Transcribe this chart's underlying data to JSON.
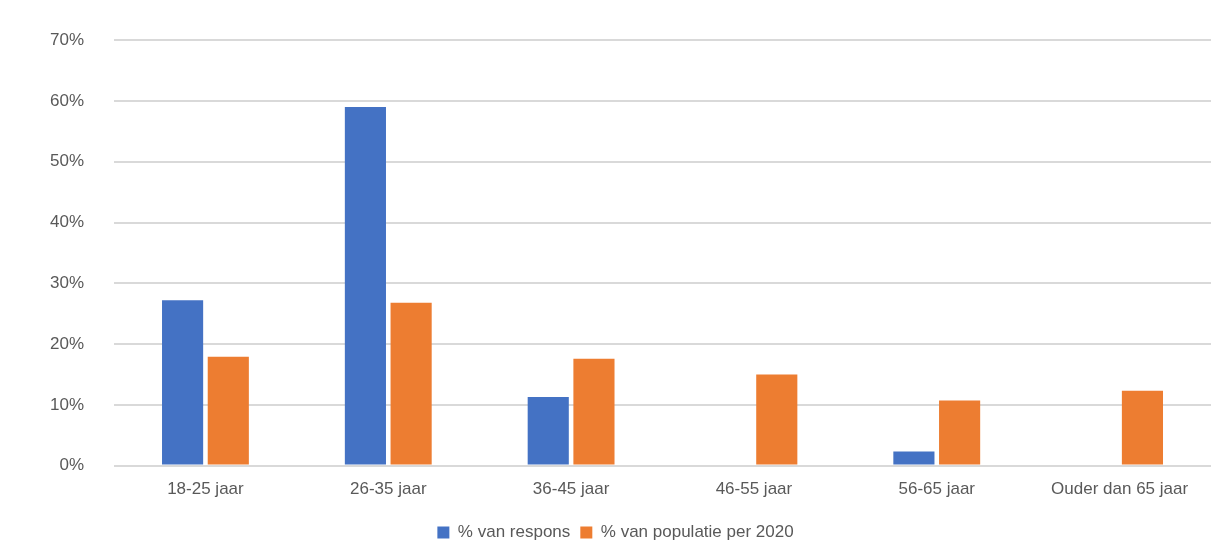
{
  "chart_data": {
    "type": "bar",
    "categories": [
      "18-25 jaar",
      "26-35 jaar",
      "36-45 jaar",
      "46-55 jaar",
      "56-65 jaar",
      "Ouder dan 65 jaar"
    ],
    "series": [
      {
        "name": "% van respons",
        "color": "#4472c4",
        "values": [
          27.2,
          59,
          11.3,
          0,
          2.3,
          0
        ]
      },
      {
        "name": "% van populatie per 2020",
        "color": "#ed7d31",
        "values": [
          17.9,
          26.8,
          17.6,
          15,
          10.7,
          12.3
        ]
      }
    ],
    "ylim": [
      0,
      70
    ],
    "yticks": [
      {
        "value": 0,
        "label": "0%"
      },
      {
        "value": 10,
        "label": "10%"
      },
      {
        "value": 20,
        "label": "20%"
      },
      {
        "value": 30,
        "label": "30%"
      },
      {
        "value": 40,
        "label": "40%"
      },
      {
        "value": 50,
        "label": "50%"
      },
      {
        "value": 60,
        "label": "60%"
      },
      {
        "value": 70,
        "label": "70%"
      }
    ],
    "grid": "y",
    "legend": "bottom"
  }
}
